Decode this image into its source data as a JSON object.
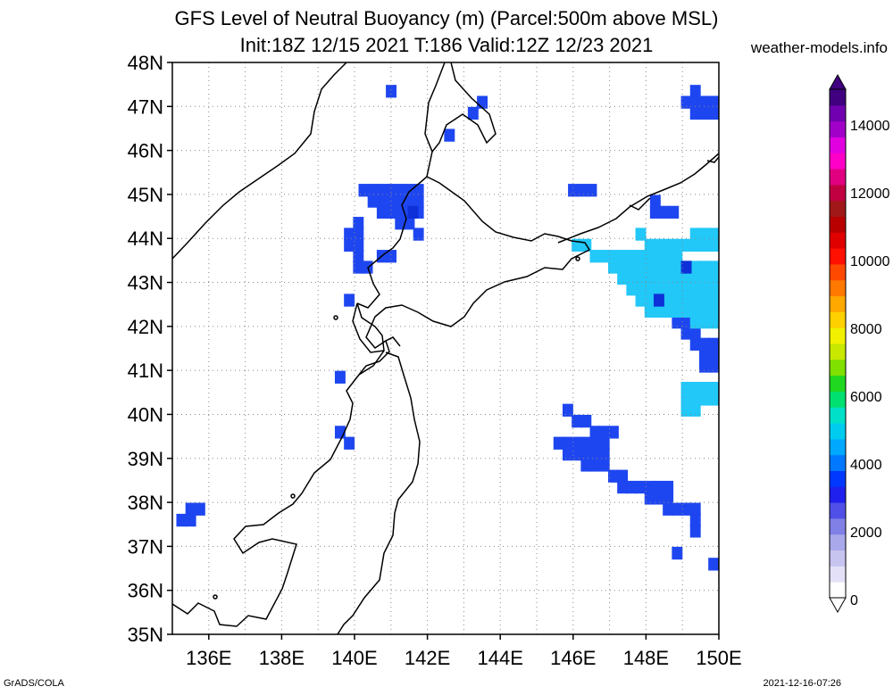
{
  "title": {
    "line1": "GFS Level of Neutral Buoyancy (m) (Parcel:500m above MSL)",
    "line2": "Init:18Z 12/15 2021 T:186 Valid:12Z 12/23 2021"
  },
  "site": "weather-models.info",
  "footer": {
    "left": "GrADS/COLA",
    "right": "2021-12-16-07:26"
  },
  "axes": {
    "lat_labels": [
      "35N",
      "36N",
      "37N",
      "38N",
      "39N",
      "40N",
      "41N",
      "42N",
      "43N",
      "44N",
      "45N",
      "46N",
      "47N",
      "48N"
    ],
    "lon_labels": [
      "136E",
      "138E",
      "140E",
      "142E",
      "144E",
      "146E",
      "148E",
      "150E"
    ],
    "lat_range": [
      35,
      48
    ],
    "lon_range": [
      135,
      150
    ]
  },
  "colorbar": {
    "labels": [
      "0",
      "2000",
      "4000",
      "6000",
      "8000",
      "10000",
      "12000",
      "14000"
    ],
    "range": [
      0,
      15000
    ],
    "colors": [
      "#ffffff",
      "#e4e0f8",
      "#c8c4f0",
      "#a8a8ea",
      "#8080e6",
      "#5050e8",
      "#2020ee",
      "#0038ff",
      "#0078ff",
      "#00a8ff",
      "#00ccf0",
      "#00e0c8",
      "#00e070",
      "#20d820",
      "#80e000",
      "#c8e800",
      "#f0f000",
      "#ffd000",
      "#ffa800",
      "#ff7800",
      "#ff4800",
      "#ff1000",
      "#e00000",
      "#b80000",
      "#a01818",
      "#c00040",
      "#e00080",
      "#ff00c8",
      "#e000e0",
      "#a000c8",
      "#7000b0",
      "#400080"
    ]
  },
  "map_data": {
    "cells_blue": [
      [
        140.25,
        45.1
      ],
      [
        140.5,
        45.1
      ],
      [
        140.75,
        45.1
      ],
      [
        141,
        45.1
      ],
      [
        141.25,
        45.1
      ],
      [
        141.5,
        45.1
      ],
      [
        141.75,
        45.1
      ],
      [
        140.5,
        44.85
      ],
      [
        140.75,
        44.85
      ],
      [
        141.0,
        44.85
      ],
      [
        141.25,
        44.85
      ],
      [
        141.5,
        44.85
      ],
      [
        141.75,
        44.85
      ],
      [
        140.75,
        44.6
      ],
      [
        141.0,
        44.6
      ],
      [
        141.25,
        44.6
      ],
      [
        141.5,
        44.6
      ],
      [
        141.75,
        44.6
      ],
      [
        140.1,
        44.35
      ],
      [
        141.25,
        44.35
      ],
      [
        141.5,
        44.35
      ],
      [
        139.85,
        44.1
      ],
      [
        140.1,
        44.1
      ],
      [
        141.75,
        44.1
      ],
      [
        139.85,
        43.85
      ],
      [
        140.1,
        43.85
      ],
      [
        140.1,
        43.6
      ],
      [
        140.75,
        43.6
      ],
      [
        141.0,
        43.6
      ],
      [
        140.1,
        43.35
      ],
      [
        140.35,
        43.35
      ],
      [
        139.85,
        42.6
      ],
      [
        139.6,
        40.85
      ],
      [
        139.6,
        39.6
      ],
      [
        139.85,
        39.35
      ],
      [
        135.5,
        37.85
      ],
      [
        135.75,
        37.85
      ],
      [
        135.25,
        37.6
      ],
      [
        135.5,
        37.6
      ],
      [
        141.0,
        47.35
      ],
      [
        143.5,
        47.1
      ],
      [
        143.25,
        46.85
      ],
      [
        142.6,
        46.35
      ],
      [
        146.0,
        45.1
      ],
      [
        146.25,
        45.1
      ],
      [
        146.5,
        45.1
      ],
      [
        148.25,
        44.85
      ],
      [
        148.25,
        44.6
      ],
      [
        148.5,
        44.6
      ],
      [
        148.75,
        44.6
      ],
      [
        149.35,
        47.35
      ],
      [
        149.1,
        47.1
      ],
      [
        149.35,
        47.1
      ],
      [
        149.6,
        47.1
      ],
      [
        149.85,
        47.1
      ],
      [
        149.35,
        46.85
      ],
      [
        149.6,
        46.85
      ],
      [
        149.85,
        46.85
      ],
      [
        145.85,
        40.1
      ],
      [
        146.1,
        39.85
      ],
      [
        146.35,
        39.85
      ],
      [
        146.6,
        39.6
      ],
      [
        146.85,
        39.6
      ],
      [
        147.1,
        39.6
      ],
      [
        145.6,
        39.35
      ],
      [
        145.85,
        39.35
      ],
      [
        146.1,
        39.35
      ],
      [
        146.35,
        39.35
      ],
      [
        146.6,
        39.35
      ],
      [
        146.85,
        39.35
      ],
      [
        145.85,
        39.1
      ],
      [
        146.1,
        39.1
      ],
      [
        146.35,
        39.1
      ],
      [
        146.6,
        39.1
      ],
      [
        146.85,
        39.1
      ],
      [
        146.35,
        38.85
      ],
      [
        146.6,
        38.85
      ],
      [
        146.85,
        38.85
      ],
      [
        147.1,
        38.6
      ],
      [
        147.35,
        38.6
      ],
      [
        147.35,
        38.35
      ],
      [
        147.6,
        38.35
      ],
      [
        147.85,
        38.35
      ],
      [
        148.1,
        38.35
      ],
      [
        148.35,
        38.35
      ],
      [
        148.6,
        38.35
      ],
      [
        148.1,
        38.1
      ],
      [
        148.35,
        38.1
      ],
      [
        148.6,
        38.1
      ],
      [
        148.6,
        37.85
      ],
      [
        148.85,
        37.85
      ],
      [
        149.1,
        37.85
      ],
      [
        149.35,
        37.85
      ],
      [
        149.35,
        37.6
      ],
      [
        149.35,
        37.35
      ],
      [
        148.85,
        36.85
      ],
      [
        149.85,
        36.6
      ],
      [
        148.85,
        42.1
      ],
      [
        149.1,
        42.1
      ],
      [
        149.1,
        41.85
      ],
      [
        149.35,
        41.85
      ],
      [
        149.35,
        41.6
      ],
      [
        149.6,
        41.6
      ],
      [
        149.85,
        41.6
      ],
      [
        149.6,
        41.35
      ],
      [
        149.85,
        41.35
      ],
      [
        149.6,
        41.1
      ],
      [
        149.85,
        41.1
      ]
    ],
    "cells_cyan": [
      [
        146.1,
        43.85
      ],
      [
        146.35,
        43.85
      ],
      [
        146.6,
        43.6
      ],
      [
        146.85,
        43.6
      ],
      [
        147.1,
        43.6
      ],
      [
        147.35,
        43.6
      ],
      [
        147.6,
        43.6
      ],
      [
        147.85,
        43.6
      ],
      [
        148.1,
        43.6
      ],
      [
        148.35,
        43.6
      ],
      [
        148.6,
        43.6
      ],
      [
        148.85,
        43.6
      ],
      [
        147.1,
        43.35
      ],
      [
        147.35,
        43.35
      ],
      [
        147.6,
        43.35
      ],
      [
        147.85,
        43.35
      ],
      [
        148.1,
        43.35
      ],
      [
        148.35,
        43.35
      ],
      [
        148.6,
        43.35
      ],
      [
        148.85,
        43.35
      ],
      [
        149.1,
        43.35
      ],
      [
        149.35,
        43.35
      ],
      [
        149.6,
        43.35
      ],
      [
        149.85,
        43.35
      ],
      [
        147.35,
        43.1
      ],
      [
        147.6,
        43.1
      ],
      [
        147.85,
        43.1
      ],
      [
        148.1,
        43.1
      ],
      [
        148.35,
        43.1
      ],
      [
        148.6,
        43.1
      ],
      [
        148.85,
        43.1
      ],
      [
        149.1,
        43.1
      ],
      [
        149.35,
        43.1
      ],
      [
        149.6,
        43.1
      ],
      [
        149.85,
        43.1
      ],
      [
        147.6,
        42.85
      ],
      [
        147.85,
        42.85
      ],
      [
        148.1,
        42.85
      ],
      [
        148.35,
        42.85
      ],
      [
        148.6,
        42.85
      ],
      [
        148.85,
        42.85
      ],
      [
        149.1,
        42.85
      ],
      [
        149.35,
        42.85
      ],
      [
        149.6,
        42.85
      ],
      [
        149.85,
        42.85
      ],
      [
        147.85,
        42.6
      ],
      [
        148.1,
        42.6
      ],
      [
        148.35,
        42.6
      ],
      [
        148.6,
        42.6
      ],
      [
        148.85,
        42.6
      ],
      [
        149.1,
        42.6
      ],
      [
        149.35,
        42.6
      ],
      [
        149.6,
        42.6
      ],
      [
        149.85,
        42.6
      ],
      [
        148.1,
        42.35
      ],
      [
        148.35,
        42.35
      ],
      [
        148.6,
        42.35
      ],
      [
        148.85,
        42.35
      ],
      [
        149.1,
        42.35
      ],
      [
        149.35,
        42.35
      ],
      [
        149.6,
        42.35
      ],
      [
        149.85,
        42.35
      ],
      [
        149.35,
        42.1
      ],
      [
        149.6,
        42.1
      ],
      [
        149.85,
        42.1
      ],
      [
        148.1,
        43.85
      ],
      [
        148.35,
        43.85
      ],
      [
        148.6,
        43.85
      ],
      [
        148.85,
        43.85
      ],
      [
        149.1,
        43.85
      ],
      [
        149.35,
        43.85
      ],
      [
        149.6,
        43.85
      ],
      [
        149.85,
        43.85
      ],
      [
        147.85,
        44.1
      ],
      [
        149.35,
        44.1
      ],
      [
        149.6,
        44.1
      ],
      [
        149.85,
        44.1
      ],
      [
        149.1,
        40.6
      ],
      [
        149.35,
        40.6
      ],
      [
        149.6,
        40.6
      ],
      [
        149.85,
        40.6
      ],
      [
        149.1,
        40.35
      ],
      [
        149.35,
        40.35
      ],
      [
        149.6,
        40.35
      ],
      [
        149.85,
        40.35
      ],
      [
        149.1,
        40.1
      ],
      [
        149.35,
        40.1
      ]
    ],
    "cells_dark": [
      [
        149.1,
        43.35
      ],
      [
        141.6,
        44.6
      ],
      [
        148.35,
        42.6
      ]
    ]
  }
}
